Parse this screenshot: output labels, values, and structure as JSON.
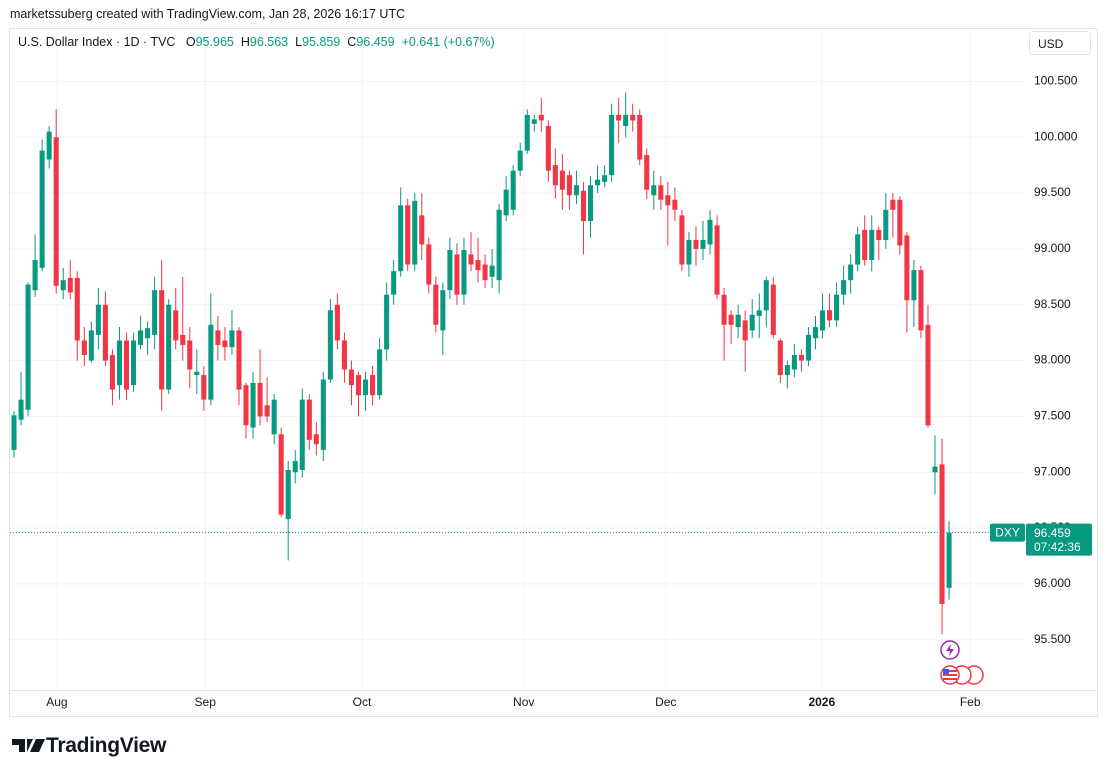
{
  "chart_data": {
    "type": "candlestick",
    "attribution": "marketssuberg created with TradingView.com, Jan 28, 2026 16:17 UTC",
    "title": "U.S. Dollar Index · 1D · TVC",
    "ohlc_labels": [
      "O",
      "H",
      "L",
      "C"
    ],
    "change": "+0.641 (+0.67%)",
    "currency": "USD",
    "symbol": "DXY",
    "countdown": "07:42:36",
    "watermark": "TradingView",
    "up_color": "#089981",
    "down_color": "#f23645",
    "grid": true,
    "xlim": [
      -0.57,
      143.8
    ],
    "xticks": [
      {
        "value": 6.1,
        "label": "Aug"
      },
      {
        "value": 27.2,
        "label": "Sep"
      },
      {
        "value": 49.5,
        "label": "Oct"
      },
      {
        "value": 72.5,
        "label": "Nov"
      },
      {
        "value": 92.7,
        "label": "Dec"
      },
      {
        "value": 114.9,
        "label": "2026"
      },
      {
        "value": 136,
        "label": "Feb"
      }
    ],
    "ylim": [
      95.05,
      100.96
    ],
    "yticks": [
      {
        "value": 95.5,
        "label": "95.500"
      },
      {
        "value": 96,
        "label": "96.000"
      },
      {
        "value": 96.5,
        "label": "96.500"
      },
      {
        "value": 97,
        "label": "97.000"
      },
      {
        "value": 97.5,
        "label": "97.500"
      },
      {
        "value": 98,
        "label": "98.000"
      },
      {
        "value": 98.5,
        "label": "98.500"
      },
      {
        "value": 99,
        "label": "99.000"
      },
      {
        "value": 99.5,
        "label": "99.500"
      },
      {
        "value": 100,
        "label": "100.000"
      },
      {
        "value": 100.5,
        "label": "100.500"
      }
    ],
    "open": [
      97.2,
      97.47,
      97.56,
      98.63,
      98.83,
      99.8,
      100.0,
      98.63,
      98.74,
      98.74,
      98.18,
      98.0,
      98.23,
      98.5,
      98.05,
      97.78,
      98.18,
      97.78,
      98.14,
      98.2,
      98.23,
      98.63,
      97.74,
      98.45,
      98.23,
      98.18,
      97.87,
      97.87,
      97.65,
      98.27,
      98.18,
      98.12,
      98.27,
      97.78,
      97.4,
      97.8,
      97.6,
      97.34,
      97.34,
      96.58,
      97.0,
      97.02,
      97.65,
      97.34,
      97.2,
      97.83,
      98.5,
      98.18,
      97.92,
      97.87,
      97.69,
      97.87,
      97.69,
      98.1,
      98.59,
      98.8,
      99.39,
      98.86,
      99.3,
      99.04,
      98.68,
      98.27,
      98.63,
      98.95,
      98.59,
      98.95,
      98.9,
      98.86,
      98.75,
      98.72,
      99.3,
      99.35,
      99.7,
      99.88,
      100.12,
      100.2,
      100.1,
      99.75,
      99.7,
      99.66,
      99.48,
      99.52,
      99.25,
      99.57,
      99.6,
      99.66,
      100.2,
      100.1,
      100.2,
      100.2,
      99.84,
      99.48,
      99.57,
      99.48,
      99.44,
      99.3,
      98.86,
      99.08,
      99.0,
      99.04,
      99.21,
      98.59,
      98.41,
      98.3,
      98.36,
      98.27,
      98.4,
      98.45,
      98.68,
      98.18,
      97.87,
      97.92,
      98.05,
      98.0,
      98.2,
      98.27,
      98.45,
      98.36,
      98.59,
      98.72,
      98.86,
      99.17,
      98.9,
      99.17,
      99.08,
      99.44,
      99.44,
      99.12,
      98.54,
      98.81,
      98.32,
      97.0,
      97.07,
      95.965
    ],
    "high": [
      97.55,
      97.9,
      98.7,
      99.13,
      99.98,
      100.1,
      100.25,
      98.83,
      98.9,
      98.8,
      98.3,
      98.35,
      98.65,
      98.62,
      98.1,
      98.3,
      98.25,
      98.25,
      98.4,
      98.35,
      98.75,
      98.9,
      98.55,
      98.65,
      98.75,
      98.3,
      98.1,
      97.95,
      98.6,
      98.4,
      98.3,
      98.45,
      98.3,
      97.8,
      97.9,
      98.1,
      97.85,
      97.7,
      97.4,
      97.1,
      97.2,
      97.75,
      97.7,
      97.45,
      97.9,
      98.55,
      98.6,
      98.25,
      98.0,
      97.9,
      97.9,
      97.95,
      98.2,
      98.7,
      98.9,
      99.55,
      99.45,
      99.5,
      99.5,
      99.1,
      98.75,
      98.7,
      99.1,
      99.05,
      99.1,
      99.15,
      99.1,
      98.95,
      99.0,
      99.4,
      99.65,
      99.75,
      99.95,
      100.25,
      100.2,
      100.35,
      100.15,
      99.9,
      99.85,
      99.7,
      99.7,
      99.6,
      99.65,
      99.75,
      99.75,
      100.3,
      100.35,
      100.4,
      100.3,
      100.25,
      99.9,
      99.7,
      99.65,
      99.6,
      99.55,
      99.35,
      99.15,
      99.2,
      99.25,
      99.35,
      99.3,
      98.65,
      98.45,
      98.5,
      98.45,
      98.55,
      98.6,
      98.75,
      98.75,
      98.2,
      98.0,
      98.15,
      98.1,
      98.3,
      98.4,
      98.6,
      98.6,
      98.7,
      98.85,
      98.95,
      99.2,
      99.3,
      99.3,
      99.2,
      99.5,
      99.5,
      99.47,
      99.15,
      98.9,
      98.85,
      98.5,
      97.33,
      97.3,
      96.563
    ],
    "low": [
      97.13,
      97.42,
      97.5,
      98.57,
      98.8,
      99.72,
      98.6,
      98.55,
      98.55,
      98.0,
      97.95,
      97.98,
      98.1,
      97.95,
      97.6,
      97.65,
      97.65,
      97.72,
      98.1,
      98.05,
      98.1,
      97.55,
      97.7,
      98.1,
      98.0,
      97.75,
      97.7,
      97.55,
      97.6,
      98.0,
      98.0,
      98.05,
      97.6,
      97.3,
      97.3,
      97.42,
      97.45,
      97.25,
      96.6,
      96.21,
      96.9,
      96.95,
      97.2,
      97.15,
      97.1,
      97.8,
      98.1,
      97.8,
      97.6,
      97.5,
      97.55,
      97.6,
      97.65,
      98.0,
      98.5,
      98.75,
      98.8,
      98.8,
      98.9,
      98.6,
      98.25,
      98.05,
      98.55,
      98.5,
      98.5,
      98.8,
      98.7,
      98.65,
      98.65,
      98.6,
      99.25,
      99.3,
      99.65,
      99.85,
      100.05,
      100.05,
      99.6,
      99.45,
      99.35,
      99.35,
      99.4,
      98.95,
      99.1,
      99.5,
      99.55,
      99.6,
      99.95,
      100.0,
      100.05,
      99.75,
      99.45,
      99.35,
      99.35,
      99.03,
      99.25,
      98.8,
      98.75,
      98.85,
      98.9,
      98.95,
      98.55,
      98.0,
      98.15,
      98.2,
      97.9,
      98.2,
      98.2,
      98.3,
      98.2,
      97.8,
      97.75,
      97.85,
      97.9,
      97.95,
      98.1,
      98.2,
      98.3,
      98.3,
      98.5,
      98.6,
      98.8,
      98.85,
      98.8,
      98.9,
      99.0,
      99.1,
      98.95,
      98.25,
      98.3,
      98.2,
      97.4,
      96.8,
      95.55,
      95.859
    ],
    "close": [
      97.51,
      97.65,
      98.68,
      98.9,
      99.88,
      100.05,
      98.67,
      98.72,
      98.61,
      98.18,
      98.05,
      98.27,
      98.5,
      98.0,
      97.74,
      98.18,
      97.74,
      98.18,
      98.27,
      98.29,
      98.63,
      97.74,
      98.5,
      98.18,
      98.14,
      97.92,
      97.9,
      97.65,
      98.32,
      98.14,
      98.12,
      98.27,
      97.74,
      97.42,
      97.8,
      97.5,
      97.5,
      97.65,
      96.62,
      97.02,
      97.1,
      97.65,
      97.29,
      97.25,
      97.83,
      98.45,
      98.18,
      97.92,
      97.78,
      97.69,
      97.83,
      97.69,
      98.1,
      98.59,
      98.8,
      99.39,
      98.86,
      99.43,
      99.04,
      98.68,
      98.32,
      98.63,
      98.99,
      98.59,
      98.99,
      98.86,
      98.81,
      98.72,
      98.85,
      99.35,
      99.53,
      99.7,
      99.88,
      100.2,
      100.16,
      100.15,
      99.7,
      99.57,
      99.53,
      99.48,
      99.57,
      99.25,
      99.57,
      99.62,
      99.66,
      100.2,
      100.15,
      100.2,
      100.15,
      99.8,
      99.53,
      99.57,
      99.44,
      99.39,
      99.35,
      98.86,
      99.08,
      99.0,
      99.08,
      99.26,
      98.59,
      98.32,
      98.32,
      98.41,
      98.18,
      98.41,
      98.45,
      98.72,
      98.23,
      97.87,
      97.96,
      98.05,
      98.0,
      98.23,
      98.3,
      98.45,
      98.36,
      98.59,
      98.72,
      98.86,
      99.13,
      98.9,
      99.17,
      99.08,
      99.35,
      99.35,
      99.03,
      98.54,
      98.81,
      98.27,
      97.42,
      97.05,
      95.82,
      96.459
    ]
  }
}
